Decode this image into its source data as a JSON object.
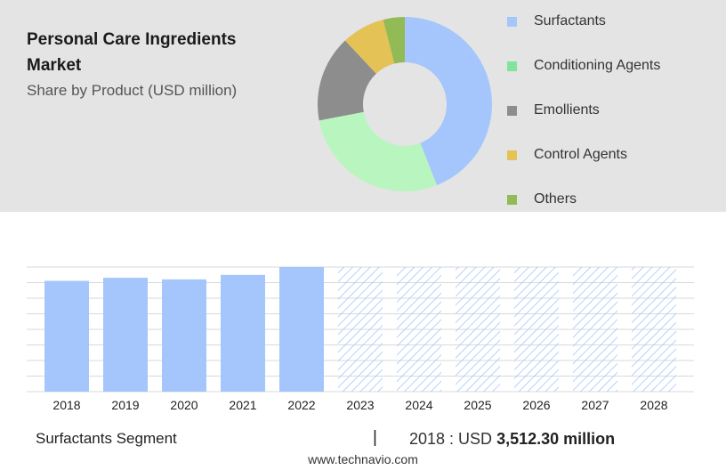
{
  "header": {
    "title": "Personal Care Ingredients Market",
    "subtitle": "Share by Product (USD million)"
  },
  "legend": [
    {
      "label": "Surfactants",
      "color": "#a4c6fc"
    },
    {
      "label": "Conditioning Agents",
      "color": "#7ee59a"
    },
    {
      "label": "Emollients",
      "color": "#8d8d8d"
    },
    {
      "label": "Control Agents",
      "color": "#e4c255"
    },
    {
      "label": "Others",
      "color": "#92ba55"
    }
  ],
  "footer": {
    "segment": "Surfactants Segment",
    "separator": "|",
    "year_label": "2018 : USD",
    "value": "3,512.30 million",
    "url": "www.technavio.com"
  },
  "chart_data": [
    {
      "type": "pie",
      "donut": true,
      "categories": [
        "Surfactants",
        "Conditioning Agents",
        "Emollients",
        "Control Agents",
        "Others"
      ],
      "values": [
        44,
        28,
        16,
        8,
        4
      ],
      "colors": [
        "#a4c6fc",
        "#b9f5bf",
        "#8d8d8d",
        "#e4c255",
        "#92ba55"
      ]
    },
    {
      "type": "bar",
      "categories": [
        "2018",
        "2019",
        "2020",
        "2021",
        "2022",
        "2023",
        "2024",
        "2025",
        "2026",
        "2027",
        "2028"
      ],
      "values": [
        3512.3,
        3610,
        3560,
        3700,
        3950,
        null,
        null,
        null,
        null,
        null,
        null
      ],
      "forecast_categories": [
        "2023",
        "2024",
        "2025",
        "2026",
        "2027",
        "2028"
      ],
      "ylim": [
        0,
        3950
      ],
      "grid": true,
      "bar_color": "#a4c6fc"
    }
  ]
}
